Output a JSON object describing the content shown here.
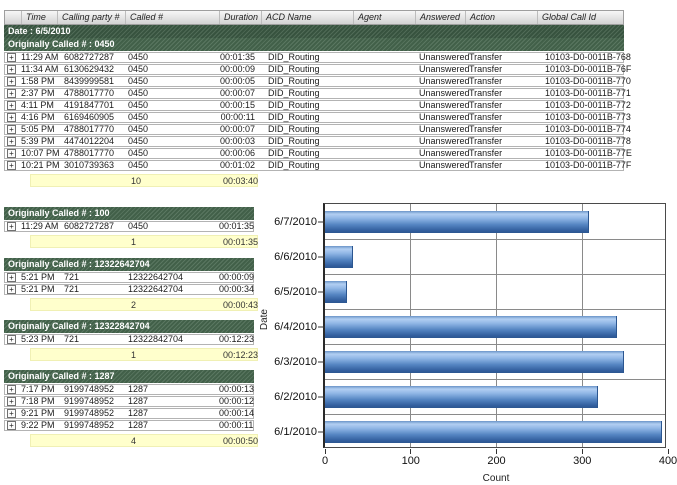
{
  "table": {
    "columns": [
      "Time",
      "Calling party #",
      "Called #",
      "Duration",
      "ACD Name",
      "Agent",
      "Answered",
      "Action",
      "Global Call Id"
    ],
    "date_header": "Date : 6/5/2010",
    "main_group": {
      "header": "Originally Called # : 0450",
      "rows": [
        {
          "time": "11:29 AM",
          "calling_party": "6082727287",
          "called": "0450",
          "duration": "00:01:35",
          "acd_name": "DID_Routing",
          "agent": "",
          "answered": "Unanswered",
          "action": "Transfer",
          "global_call_id": "10103-D0-0011B-768"
        },
        {
          "time": "11:34 AM",
          "calling_party": "6130629432",
          "called": "0450",
          "duration": "00:00:09",
          "acd_name": "DID_Routing",
          "agent": "",
          "answered": "Unanswered",
          "action": "Transfer",
          "global_call_id": "10103-D0-0011B-76F"
        },
        {
          "time": "1:58 PM",
          "calling_party": "8439999581",
          "called": "0450",
          "duration": "00:00:05",
          "acd_name": "DID_Routing",
          "agent": "",
          "answered": "Unanswered",
          "action": "Transfer",
          "global_call_id": "10103-D0-0011B-770"
        },
        {
          "time": "2:37 PM",
          "calling_party": "4788017770",
          "called": "0450",
          "duration": "00:00:07",
          "acd_name": "DID_Routing",
          "agent": "",
          "answered": "Unanswered",
          "action": "Transfer",
          "global_call_id": "10103-D0-0011B-771"
        },
        {
          "time": "4:11 PM",
          "calling_party": "4191847701",
          "called": "0450",
          "duration": "00:00:15",
          "acd_name": "DID_Routing",
          "agent": "",
          "answered": "Unanswered",
          "action": "Transfer",
          "global_call_id": "10103-D0-0011B-772"
        },
        {
          "time": "4:16 PM",
          "calling_party": "6169460905",
          "called": "0450",
          "duration": "00:00:11",
          "acd_name": "DID_Routing",
          "agent": "",
          "answered": "Unanswered",
          "action": "Transfer",
          "global_call_id": "10103-D0-0011B-773"
        },
        {
          "time": "5:05 PM",
          "calling_party": "4788017770",
          "called": "0450",
          "duration": "00:00:07",
          "acd_name": "DID_Routing",
          "agent": "",
          "answered": "Unanswered",
          "action": "Transfer",
          "global_call_id": "10103-D0-0011B-774"
        },
        {
          "time": "5:39 PM",
          "calling_party": "4474012204",
          "called": "0450",
          "duration": "00:00:03",
          "acd_name": "DID_Routing",
          "agent": "",
          "answered": "Unanswered",
          "action": "Transfer",
          "global_call_id": "10103-D0-0011B-778"
        },
        {
          "time": "10:07 PM",
          "calling_party": "4788017770",
          "called": "0450",
          "duration": "00:00:06",
          "acd_name": "DID_Routing",
          "agent": "",
          "answered": "Unanswered",
          "action": "Transfer",
          "global_call_id": "10103-D0-0011B-77E"
        },
        {
          "time": "10:21 PM",
          "calling_party": "3010739363",
          "called": "0450",
          "duration": "00:01:02",
          "acd_name": "DID_Routing",
          "agent": "",
          "answered": "Unanswered",
          "action": "Transfer",
          "global_call_id": "10103-D0-0011B-77F"
        }
      ],
      "total_count": "10",
      "total_duration": "00:03:40"
    },
    "groups": [
      {
        "header": "Originally Called # : 100",
        "rows": [
          {
            "time": "11:29 AM",
            "calling_party": "6082727287",
            "called": "0450",
            "duration": "00:01:35"
          }
        ],
        "total_count": "1",
        "total_duration": "00:01:35"
      },
      {
        "header": "Originally Called # : 12322642704",
        "rows": [
          {
            "time": "5:21 PM",
            "calling_party": "721",
            "called": "12322642704",
            "duration": "00:00:09"
          },
          {
            "time": "5:21 PM",
            "calling_party": "721",
            "called": "12322642704",
            "duration": "00:00:34"
          }
        ],
        "total_count": "2",
        "total_duration": "00:00:43"
      },
      {
        "header": "Originally Called # : 12322842704",
        "rows": [
          {
            "time": "5:23 PM",
            "calling_party": "721",
            "called": "12322842704",
            "duration": "00:12:23"
          }
        ],
        "total_count": "1",
        "total_duration": "00:12:23"
      },
      {
        "header": "Originally Called # : 1287",
        "rows": [
          {
            "time": "7:17 PM",
            "calling_party": "9199748952",
            "called": "1287",
            "duration": "00:00:13"
          },
          {
            "time": "7:18 PM",
            "calling_party": "9199748952",
            "called": "1287",
            "duration": "00:00:12"
          },
          {
            "time": "9:21 PM",
            "calling_party": "9199748952",
            "called": "1287",
            "duration": "00:00:14"
          },
          {
            "time": "9:22 PM",
            "calling_party": "9199748952",
            "called": "1287",
            "duration": "00:00:11"
          }
        ],
        "total_count": "4",
        "total_duration": "00:00:50"
      }
    ]
  },
  "icons": {
    "expand": "+"
  },
  "colors": {
    "group_header_green": "#47684f",
    "date_header_green": "#3c5a44",
    "total_row_yellow": "#ffffcc",
    "bar_blue": "#5585c2",
    "grid_gray": "#8a8a8a"
  },
  "chart_data": {
    "type": "bar",
    "orientation": "horizontal",
    "title": "",
    "categories": [
      "6/7/2010",
      "6/6/2010",
      "6/5/2010",
      "6/4/2010",
      "6/3/2010",
      "6/2/2010",
      "6/1/2010"
    ],
    "values": [
      308,
      33,
      26,
      340,
      349,
      318,
      393
    ],
    "xlabel": "Count",
    "ylabel": "Date",
    "xlim": [
      0,
      400
    ],
    "xticks": [
      0,
      100,
      200,
      300,
      400
    ],
    "grid": true,
    "legend": false
  }
}
